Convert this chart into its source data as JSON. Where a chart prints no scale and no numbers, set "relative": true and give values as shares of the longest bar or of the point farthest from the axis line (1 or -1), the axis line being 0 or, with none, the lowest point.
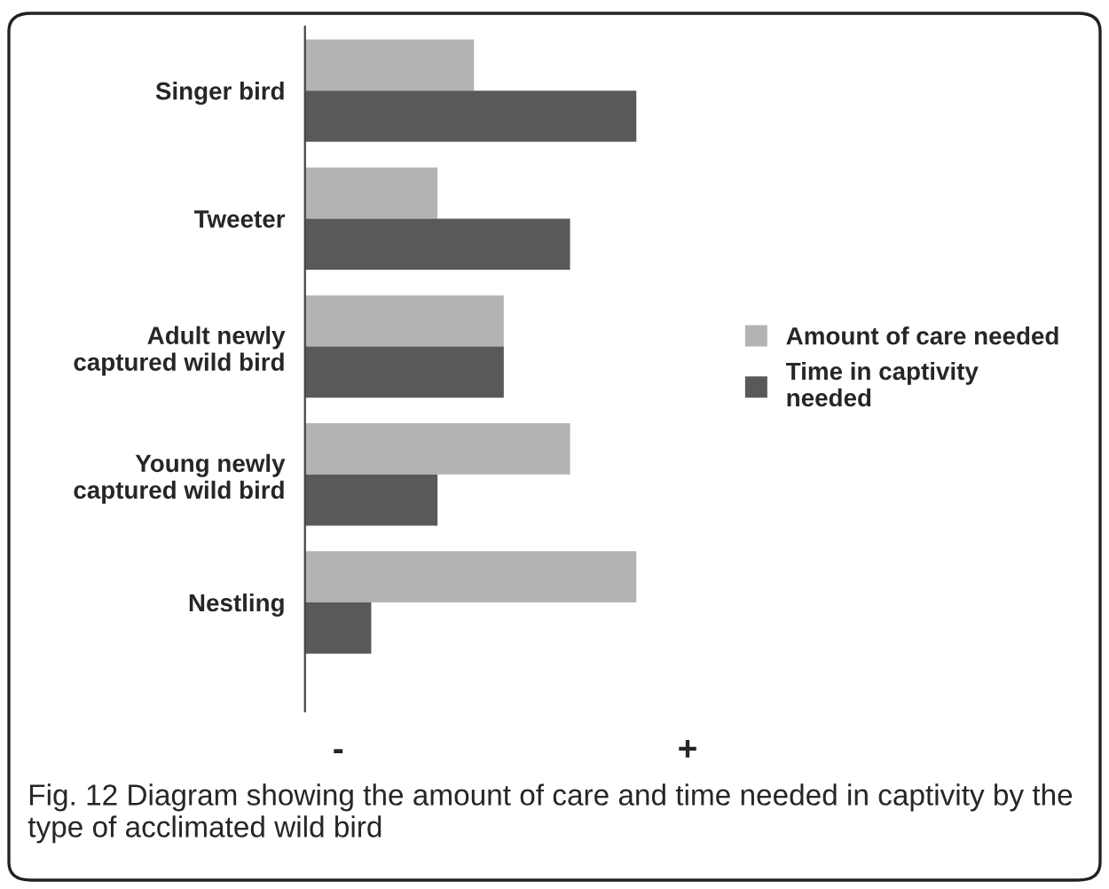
{
  "chart_data": {
    "type": "bar",
    "orientation": "horizontal",
    "relative": true,
    "categories": [
      "Singer bird",
      "Tweeter",
      "Adult newly\ncaptured wild bird",
      "Young newly\ncaptured wild bird",
      "Nestling"
    ],
    "series": [
      {
        "name": "Amount of care needed",
        "color": "#b3b3b3",
        "values": [
          0.51,
          0.4,
          0.6,
          0.8,
          1
        ]
      },
      {
        "name": "Time in captivity\nneeded",
        "color": "#595959",
        "values": [
          1,
          0.8,
          0.6,
          0.4,
          0.2
        ]
      }
    ],
    "legend": "right",
    "grid": false,
    "annotations": [
      "-",
      "+",
      "Fig. 12 Diagram showing the amount of care and time needed in captivity by the type of acclimated wild bird"
    ]
  }
}
